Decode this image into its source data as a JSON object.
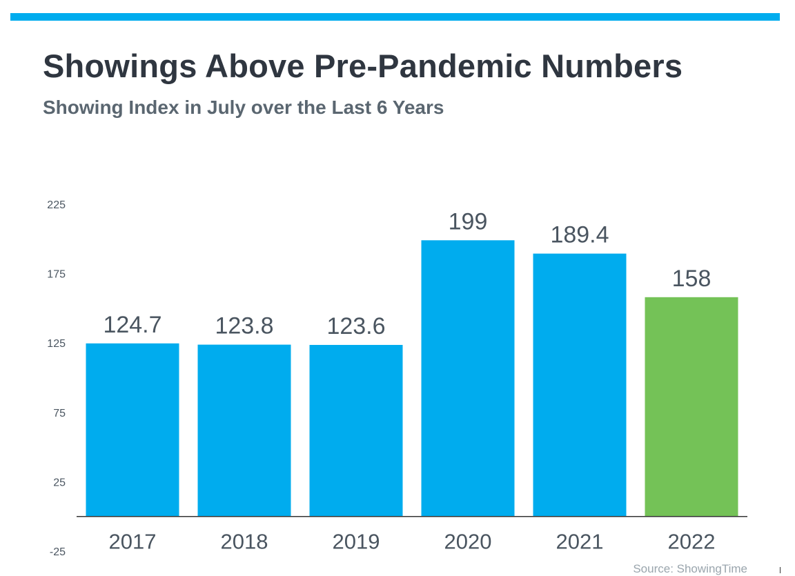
{
  "header": {
    "title": "Showings Above Pre-Pandemic Numbers",
    "subtitle": "Showing Index in July over the Last 6 Years"
  },
  "source": "Source: ShowingTime",
  "colors": {
    "accent_bar": "#00acee",
    "bar_default": "#00acee",
    "bar_highlight": "#74c257",
    "text_dark": "#2f3640",
    "label": "#4a5560",
    "axis": "#333333"
  },
  "chart_data": {
    "type": "bar",
    "title": "Showings Above Pre-Pandemic Numbers",
    "subtitle": "Showing Index in July over the Last 6 Years",
    "categories": [
      "2017",
      "2018",
      "2019",
      "2020",
      "2021",
      "2022"
    ],
    "values": [
      124.7,
      123.8,
      123.6,
      199,
      189.4,
      158
    ],
    "value_labels": [
      "124.7",
      "123.8",
      "123.6",
      "199",
      "189.4",
      "158"
    ],
    "highlight_index": 5,
    "yticks": [
      225,
      175,
      125,
      75,
      25,
      -25
    ],
    "ylim": [
      -25,
      225
    ],
    "baseline": 0,
    "xlabel": "",
    "ylabel": "",
    "grid": false,
    "legend": "none"
  }
}
